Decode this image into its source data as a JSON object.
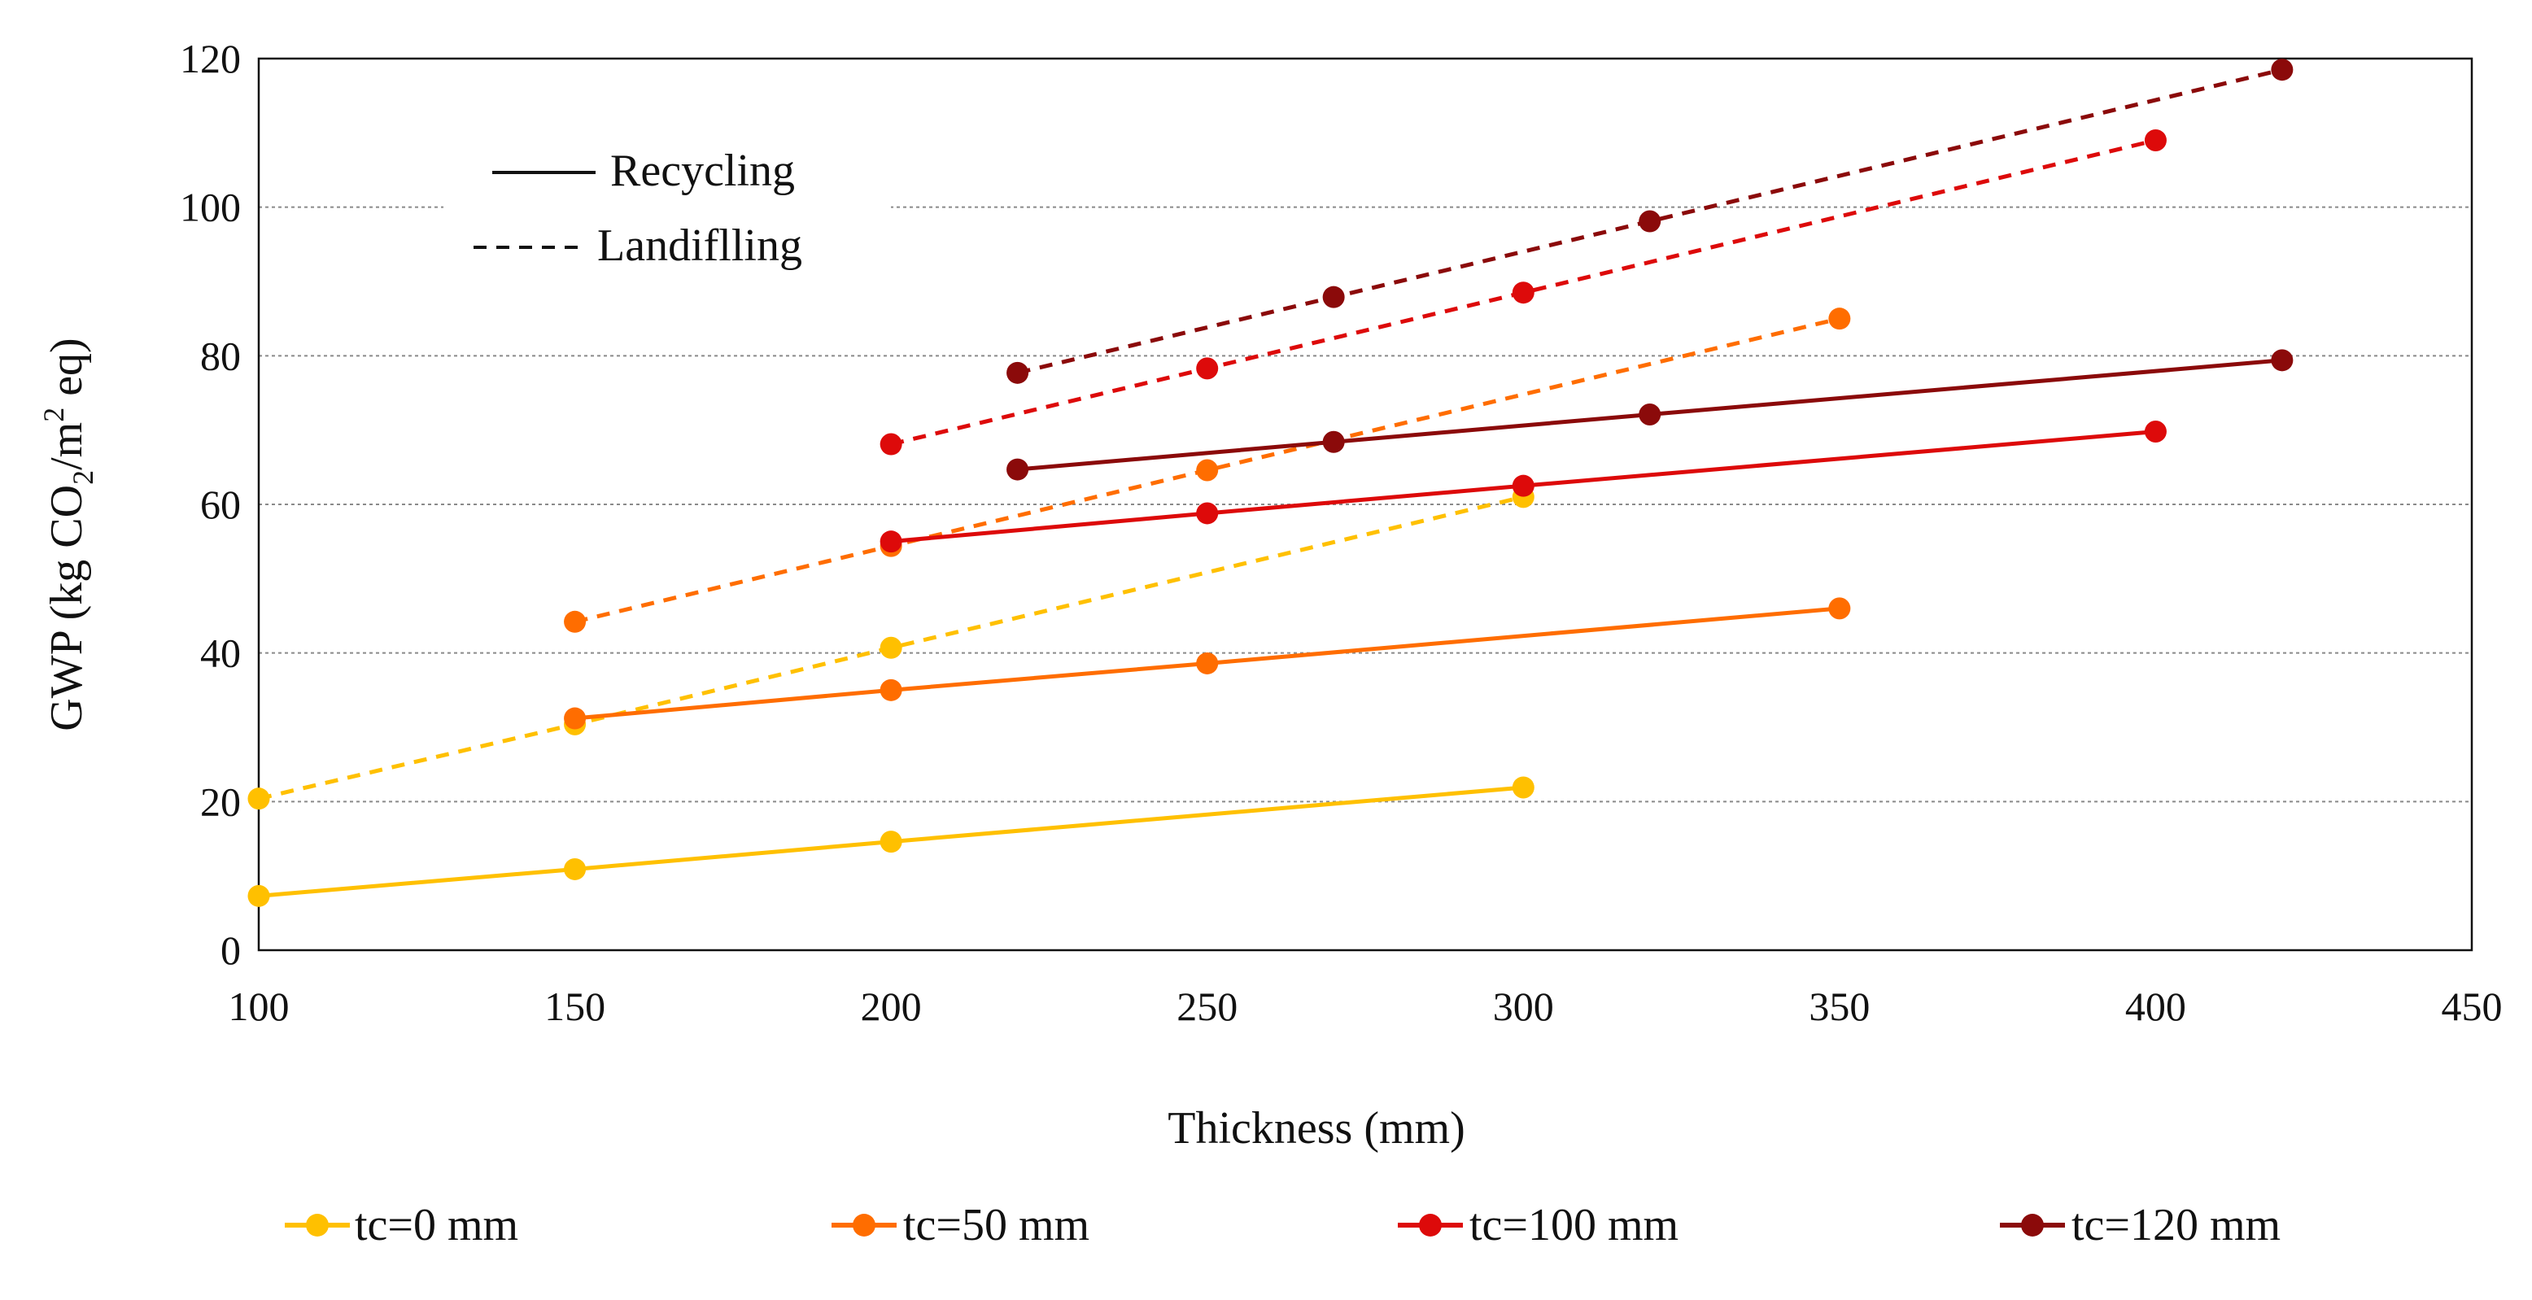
{
  "chart_data": {
    "type": "line",
    "xlabel": "Thickness (mm)",
    "ylabel": {
      "prefix": "GWP (kg CO",
      "sub": "2",
      "mid": "/m",
      "sup": "2",
      "suffix": " eq)"
    },
    "xlim": [
      100,
      450
    ],
    "ylim": [
      0,
      120
    ],
    "xticks": [
      100,
      150,
      200,
      250,
      300,
      350,
      400,
      450
    ],
    "yticks": [
      0,
      20,
      40,
      60,
      80,
      100,
      120
    ],
    "grid": "horizontal-dotted",
    "style_legend": {
      "recycling": "Recycling",
      "landfilling": "Landiflling"
    },
    "series": [
      {
        "name": "tc=0 mm",
        "color": "#FFC000",
        "scenario": "Recycling",
        "x": [
          100,
          150,
          200,
          300
        ],
        "y": [
          7.3,
          10.9,
          14.6,
          21.9
        ]
      },
      {
        "name": "tc=0 mm",
        "color": "#FFC000",
        "scenario": "Landfilling",
        "x": [
          100,
          150,
          200,
          300
        ],
        "y": [
          20.4,
          30.4,
          40.7,
          61.0
        ]
      },
      {
        "name": "tc=50 mm",
        "color": "#FF6D00",
        "scenario": "Recycling",
        "x": [
          150,
          200,
          250,
          350
        ],
        "y": [
          31.2,
          35.0,
          38.6,
          46.0
        ]
      },
      {
        "name": "tc=50 mm",
        "color": "#FF6D00",
        "scenario": "Landfilling",
        "x": [
          150,
          200,
          250,
          350
        ],
        "y": [
          44.2,
          54.4,
          64.6,
          85.0
        ]
      },
      {
        "name": "tc=100 mm",
        "color": "#DD0A0A",
        "scenario": "Recycling",
        "x": [
          200,
          250,
          300,
          400
        ],
        "y": [
          55.0,
          58.8,
          62.5,
          69.8
        ]
      },
      {
        "name": "tc=100 mm",
        "color": "#DD0A0A",
        "scenario": "Landfilling",
        "x": [
          200,
          250,
          300,
          400
        ],
        "y": [
          68.1,
          78.3,
          88.5,
          109.0
        ]
      },
      {
        "name": "tc=120 mm",
        "color": "#8B0A0A",
        "scenario": "Recycling",
        "x": [
          220,
          270,
          320,
          420
        ],
        "y": [
          64.7,
          68.4,
          72.1,
          79.4
        ]
      },
      {
        "name": "tc=120 mm",
        "color": "#8B0A0A",
        "scenario": "Landfilling",
        "x": [
          220,
          270,
          320,
          420
        ],
        "y": [
          77.7,
          87.9,
          98.1,
          118.5
        ]
      }
    ],
    "legend": [
      {
        "label": "tc=0 mm",
        "color": "#FFC000"
      },
      {
        "label": "tc=50 mm",
        "color": "#FF6D00"
      },
      {
        "label": "tc=100 mm",
        "color": "#DD0A0A"
      },
      {
        "label": "tc=120 mm",
        "color": "#8B0A0A"
      }
    ]
  }
}
